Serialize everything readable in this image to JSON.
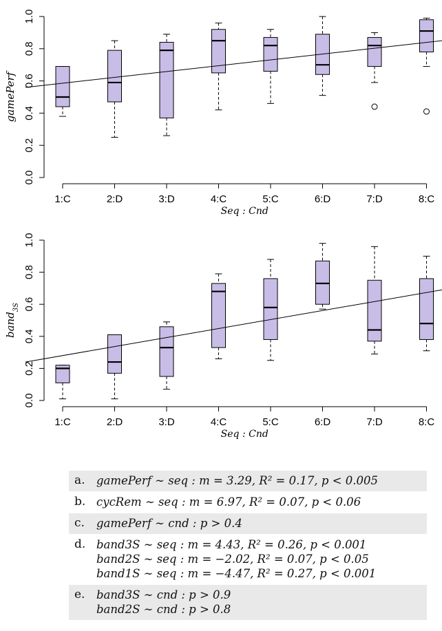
{
  "chart_data": [
    {
      "type": "box",
      "title": "",
      "xlabel": "Seq : Cnd",
      "ylabel": "gamePerf",
      "ylim": [
        0,
        1
      ],
      "yticks": [
        "0.0",
        "0.2",
        "0.4",
        "0.6",
        "0.8",
        "1.0"
      ],
      "categories": [
        "1:C",
        "2:D",
        "3:D",
        "4:C",
        "5:C",
        "6:D",
        "7:D",
        "8:C"
      ],
      "boxes": [
        {
          "min": 0.38,
          "q1": 0.44,
          "median": 0.5,
          "q3": 0.69,
          "max": 0.69,
          "outliers": []
        },
        {
          "min": 0.25,
          "q1": 0.47,
          "median": 0.59,
          "q3": 0.79,
          "max": 0.85,
          "outliers": []
        },
        {
          "min": 0.26,
          "q1": 0.37,
          "median": 0.79,
          "q3": 0.84,
          "max": 0.89,
          "outliers": []
        },
        {
          "min": 0.42,
          "q1": 0.65,
          "median": 0.85,
          "q3": 0.92,
          "max": 0.96,
          "outliers": []
        },
        {
          "min": 0.46,
          "q1": 0.66,
          "median": 0.82,
          "q3": 0.87,
          "max": 0.92,
          "outliers": []
        },
        {
          "min": 0.51,
          "q1": 0.64,
          "median": 0.7,
          "q3": 0.89,
          "max": 1.0,
          "outliers": []
        },
        {
          "min": 0.59,
          "q1": 0.69,
          "median": 0.82,
          "q3": 0.87,
          "max": 0.9,
          "outliers": [
            0.44
          ]
        },
        {
          "min": 0.69,
          "q1": 0.78,
          "median": 0.91,
          "q3": 0.98,
          "max": 0.99,
          "outliers": [
            0.41
          ]
        }
      ],
      "trend_line": {
        "y_at_x_min": 0.56,
        "y_at_x_max": 0.85
      },
      "box_color": "#c8bde6"
    },
    {
      "type": "box",
      "title": "",
      "xlabel": "Seq : Cnd",
      "ylabel": "band",
      "ylabel_subscript": "3S",
      "ylim": [
        0,
        1
      ],
      "yticks": [
        "0.0",
        "0.2",
        "0.4",
        "0.6",
        "0.8",
        "1.0"
      ],
      "categories": [
        "1:C",
        "2:D",
        "3:D",
        "4:C",
        "5:C",
        "6:D",
        "7:D",
        "8:C"
      ],
      "boxes": [
        {
          "min": 0.01,
          "q1": 0.11,
          "median": 0.2,
          "q3": 0.22,
          "max": 0.22,
          "outliers": []
        },
        {
          "min": 0.01,
          "q1": 0.17,
          "median": 0.24,
          "q3": 0.41,
          "max": 0.41,
          "outliers": []
        },
        {
          "min": 0.07,
          "q1": 0.15,
          "median": 0.33,
          "q3": 0.46,
          "max": 0.49,
          "outliers": []
        },
        {
          "min": 0.26,
          "q1": 0.33,
          "median": 0.68,
          "q3": 0.73,
          "max": 0.79,
          "outliers": []
        },
        {
          "min": 0.25,
          "q1": 0.38,
          "median": 0.58,
          "q3": 0.76,
          "max": 0.88,
          "outliers": []
        },
        {
          "min": 0.57,
          "q1": 0.6,
          "median": 0.73,
          "q3": 0.87,
          "max": 0.98,
          "outliers": []
        },
        {
          "min": 0.29,
          "q1": 0.37,
          "median": 0.44,
          "q3": 0.75,
          "max": 0.96,
          "outliers": []
        },
        {
          "min": 0.31,
          "q1": 0.38,
          "median": 0.48,
          "q3": 0.76,
          "max": 0.9,
          "outliers": []
        }
      ],
      "trend_line": {
        "y_at_x_min": 0.24,
        "y_at_x_max": 0.69
      },
      "box_color": "#c8bde6"
    }
  ],
  "stats": [
    {
      "key": "a.",
      "shaded": true,
      "lines": [
        "gamePerf ∼ seq : m = 3.29, R² = 0.17, p < 0.005"
      ]
    },
    {
      "key": "b.",
      "shaded": false,
      "lines": [
        "cycRem ∼ seq : m = 6.97, R² = 0.07, p < 0.06"
      ]
    },
    {
      "key": "c.",
      "shaded": true,
      "lines": [
        "gamePerf ∼ cnd : p > 0.4"
      ]
    },
    {
      "key": "d.",
      "shaded": false,
      "lines": [
        "band3S ∼ seq : m = 4.43, R² = 0.26, p < 0.001",
        "band2S ∼ seq : m = −2.02, R² = 0.07, p < 0.05",
        "band1S ∼ seq : m = −4.47, R² = 0.27, p < 0.001"
      ]
    },
    {
      "key": "e.",
      "shaded": true,
      "lines": [
        "band3S ∼ cnd : p > 0.9",
        "band2S ∼ cnd : p > 0.8"
      ]
    }
  ]
}
